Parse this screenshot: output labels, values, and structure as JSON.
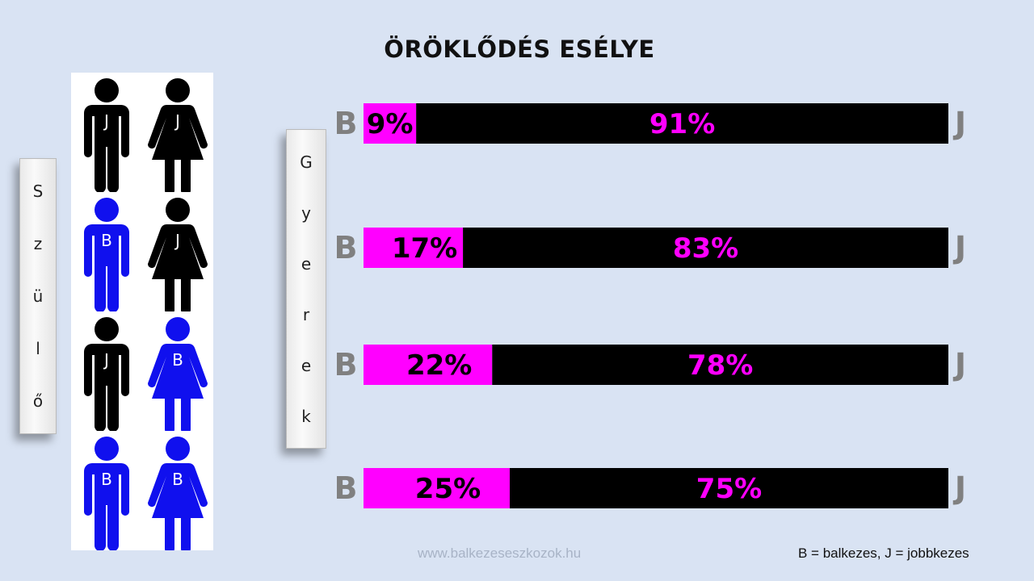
{
  "title": "ÖRÖKLŐDÉS ESÉLYE",
  "parent_label": [
    "S",
    "z",
    "ü",
    "l",
    "ő"
  ],
  "child_label": [
    "G",
    "y",
    "e",
    "r",
    "e",
    "k"
  ],
  "parents": [
    {
      "father": "J",
      "mother": "J",
      "father_color": "#000000",
      "mother_color": "#000000"
    },
    {
      "father": "B",
      "mother": "J",
      "father_color": "#1010ee",
      "mother_color": "#000000"
    },
    {
      "father": "J",
      "mother": "B",
      "father_color": "#000000",
      "mother_color": "#1010ee"
    },
    {
      "father": "B",
      "mother": "B",
      "father_color": "#1010ee",
      "mother_color": "#1010ee"
    }
  ],
  "chart_data": {
    "type": "bar",
    "stacked": true,
    "orientation": "horizontal",
    "left_label": "B",
    "right_label": "J",
    "series": [
      {
        "name": "B",
        "values": [
          9,
          17,
          22,
          25
        ],
        "labels": [
          "9%",
          "17%",
          "22%",
          "25%"
        ],
        "color": "#ff00ff"
      },
      {
        "name": "J",
        "values": [
          91,
          83,
          78,
          75
        ],
        "labels": [
          "91%",
          "83%",
          "78%",
          "75%"
        ],
        "color": "#000000"
      }
    ],
    "label_colors": {
      "B": "#000000",
      "J": "#ff00ff"
    },
    "xlim": [
      0,
      100
    ]
  },
  "footer": {
    "url": "www.balkezeseszkozok.hu",
    "legend": "B = balkezes, J = jobbkezes"
  }
}
